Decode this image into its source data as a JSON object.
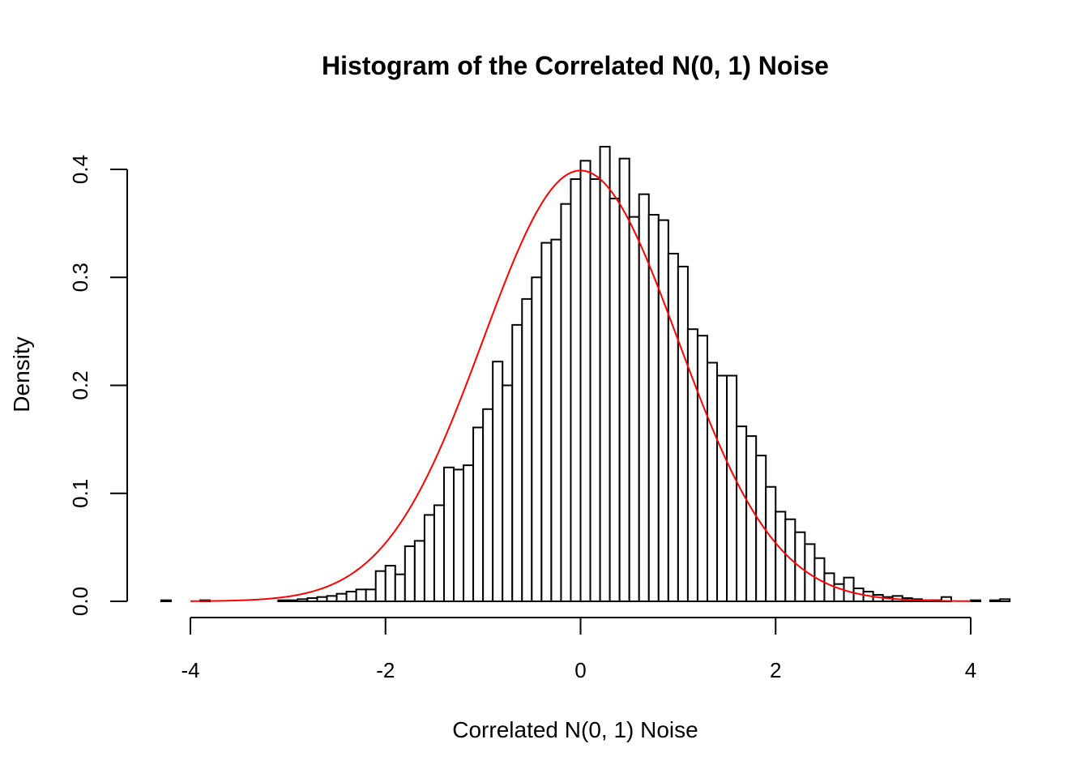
{
  "chart_data": {
    "type": "bar",
    "title": "Histogram of the Correlated N(0, 1) Noise",
    "xlabel": "Correlated N(0, 1) Noise",
    "ylabel": "Density",
    "xlim": [
      -4.3,
      4.2
    ],
    "ylim": [
      0,
      0.42
    ],
    "x_ticks": [
      -4,
      -2,
      0,
      2,
      4
    ],
    "x_tick_labels": [
      "-4",
      "-2",
      "0",
      "2",
      "4"
    ],
    "y_ticks": [
      0.0,
      0.1,
      0.2,
      0.3,
      0.4
    ],
    "y_tick_labels": [
      "0.0",
      "0.1",
      "0.2",
      "0.3",
      "0.4"
    ],
    "bin_width": 0.1,
    "bin_start": -4.3,
    "density": [
      0.001,
      0,
      0,
      0,
      0.001,
      0,
      0,
      0,
      0,
      0,
      0,
      0,
      0.001,
      0.001,
      0.002,
      0.003,
      0.004,
      0.005,
      0.007,
      0.009,
      0.011,
      0.011,
      0.028,
      0.033,
      0.025,
      0.051,
      0.056,
      0.08,
      0.089,
      0.124,
      0.122,
      0.126,
      0.161,
      0.178,
      0.222,
      0.2,
      0.256,
      0.28,
      0.3,
      0.332,
      0.335,
      0.368,
      0.391,
      0.408,
      0.391,
      0.421,
      0.373,
      0.41,
      0.356,
      0.377,
      0.358,
      0.353,
      0.322,
      0.31,
      0.252,
      0.246,
      0.221,
      0.209,
      0.209,
      0.162,
      0.153,
      0.135,
      0.106,
      0.083,
      0.076,
      0.064,
      0.053,
      0.04,
      0.026,
      0.016,
      0.022,
      0.012,
      0.009,
      0.006,
      0.004,
      0.005,
      0.003,
      0.002,
      0.001,
      0.001,
      0.004,
      0,
      0,
      0.001,
      0,
      0.001,
      0.002
    ],
    "curve": {
      "type": "normal-density",
      "mean": 0,
      "sd": 1,
      "x_range": [
        -4,
        4
      ],
      "color": "#ff0000"
    }
  }
}
